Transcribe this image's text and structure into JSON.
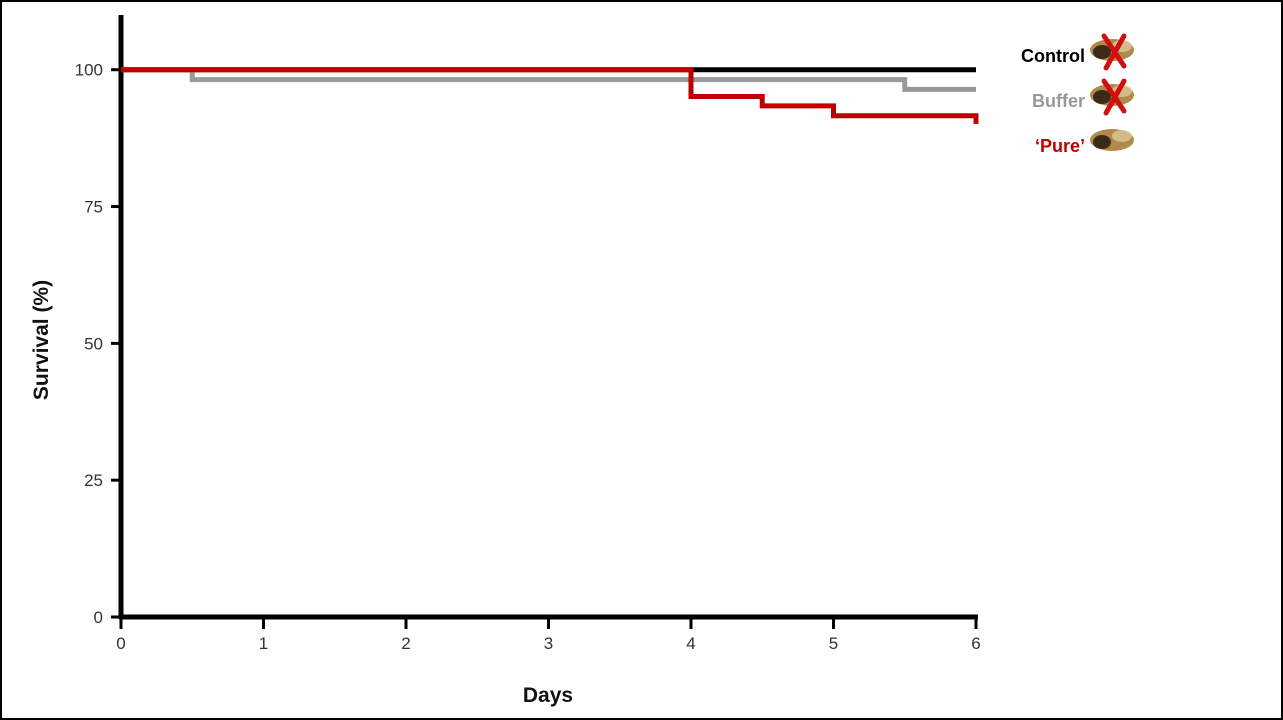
{
  "chart_data": {
    "type": "step",
    "x_label": "Days",
    "y_label": "Survival (%)",
    "xlim": [
      0,
      6
    ],
    "xticks": [
      0,
      1,
      2,
      3,
      4,
      5,
      6
    ],
    "ylim": [
      0,
      110
    ],
    "yticks": [
      0,
      25,
      50,
      75,
      100
    ],
    "series": [
      {
        "name": "Control",
        "color": "#000000",
        "x": [
          0,
          6
        ],
        "values": [
          100,
          100
        ]
      },
      {
        "name": "Buffer",
        "color": "#999999",
        "x": [
          0,
          0.5,
          5.5,
          6
        ],
        "values": [
          100,
          98.2,
          96.4,
          96.4
        ]
      },
      {
        "name": "‘Pure’",
        "color": "#c00000",
        "x": [
          0,
          4,
          4.5,
          5,
          6,
          6
        ],
        "values": [
          100,
          95.1,
          93.4,
          91.6,
          91.6,
          90.1
        ]
      }
    ]
  }
}
